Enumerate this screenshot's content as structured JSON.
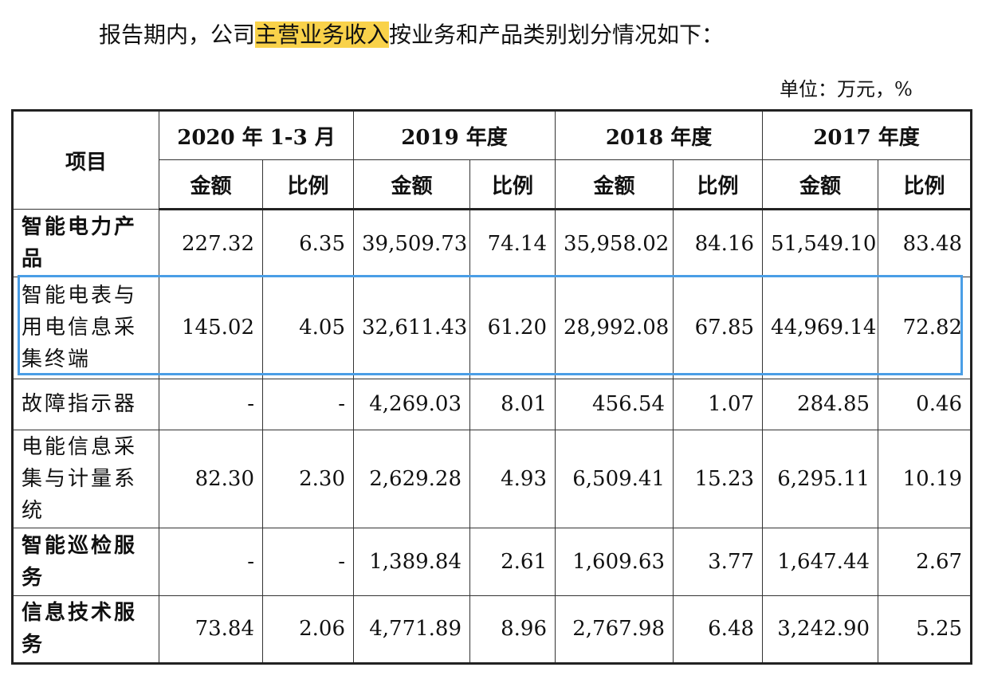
{
  "intro": {
    "before": "报告期内，公司",
    "highlight": "主营业务收入",
    "after": "按业务和产品类别划分情况如下："
  },
  "unit_label": "单位：万元，%",
  "highlight_color": "#f9d24a",
  "selection_box_color": "#4a9ee6",
  "table": {
    "item_header": "项目",
    "periods": [
      "2020 年 1-3 月",
      "2019 年度",
      "2018 年度",
      "2017 年度"
    ],
    "sub_headers": [
      "金额",
      "比例"
    ],
    "rows": [
      {
        "name": "智能电力产品",
        "bold": true,
        "values": [
          "227.32",
          "6.35",
          "39,509.73",
          "74.14",
          "35,958.02",
          "84.16",
          "51,549.10",
          "83.48"
        ]
      },
      {
        "name": "智能电表与用电信息采集终端",
        "bold": false,
        "selected": true,
        "values": [
          "145.02",
          "4.05",
          "32,611.43",
          "61.20",
          "28,992.08",
          "67.85",
          "44,969.14",
          "72.82"
        ]
      },
      {
        "name": "故障指示器",
        "bold": false,
        "values": [
          "-",
          "-",
          "4,269.03",
          "8.01",
          "456.54",
          "1.07",
          "284.85",
          "0.46"
        ]
      },
      {
        "name": "电能信息采集与计量系统",
        "bold": false,
        "values": [
          "82.30",
          "2.30",
          "2,629.28",
          "4.93",
          "6,509.41",
          "15.23",
          "6,295.11",
          "10.19"
        ]
      },
      {
        "name": "智能巡检服务",
        "bold": true,
        "values": [
          "-",
          "-",
          "1,389.84",
          "2.61",
          "1,609.63",
          "3.77",
          "1,647.44",
          "2.67"
        ]
      },
      {
        "name": "信息技术服务",
        "bold": true,
        "values": [
          "73.84",
          "2.06",
          "4,771.89",
          "8.96",
          "2,767.98",
          "6.48",
          "3,242.90",
          "5.25"
        ]
      }
    ]
  }
}
